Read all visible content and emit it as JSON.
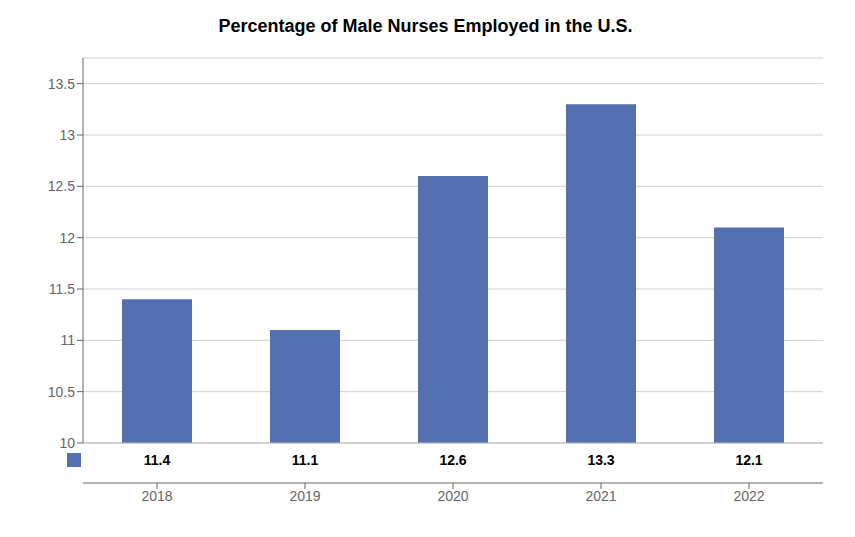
{
  "chart_data": {
    "type": "bar",
    "title": "Percentage of Male Nurses Employed in the U.S.",
    "categories": [
      "2018",
      "2019",
      "2020",
      "2021",
      "2022"
    ],
    "values": [
      11.4,
      11.1,
      12.6,
      13.3,
      12.1
    ],
    "color": "#5470b0",
    "ylim": [
      10,
      13.75
    ],
    "yticks": [
      10,
      10.5,
      11,
      11.5,
      12,
      12.5,
      13,
      13.5
    ],
    "grid": true,
    "data_labels": true
  }
}
